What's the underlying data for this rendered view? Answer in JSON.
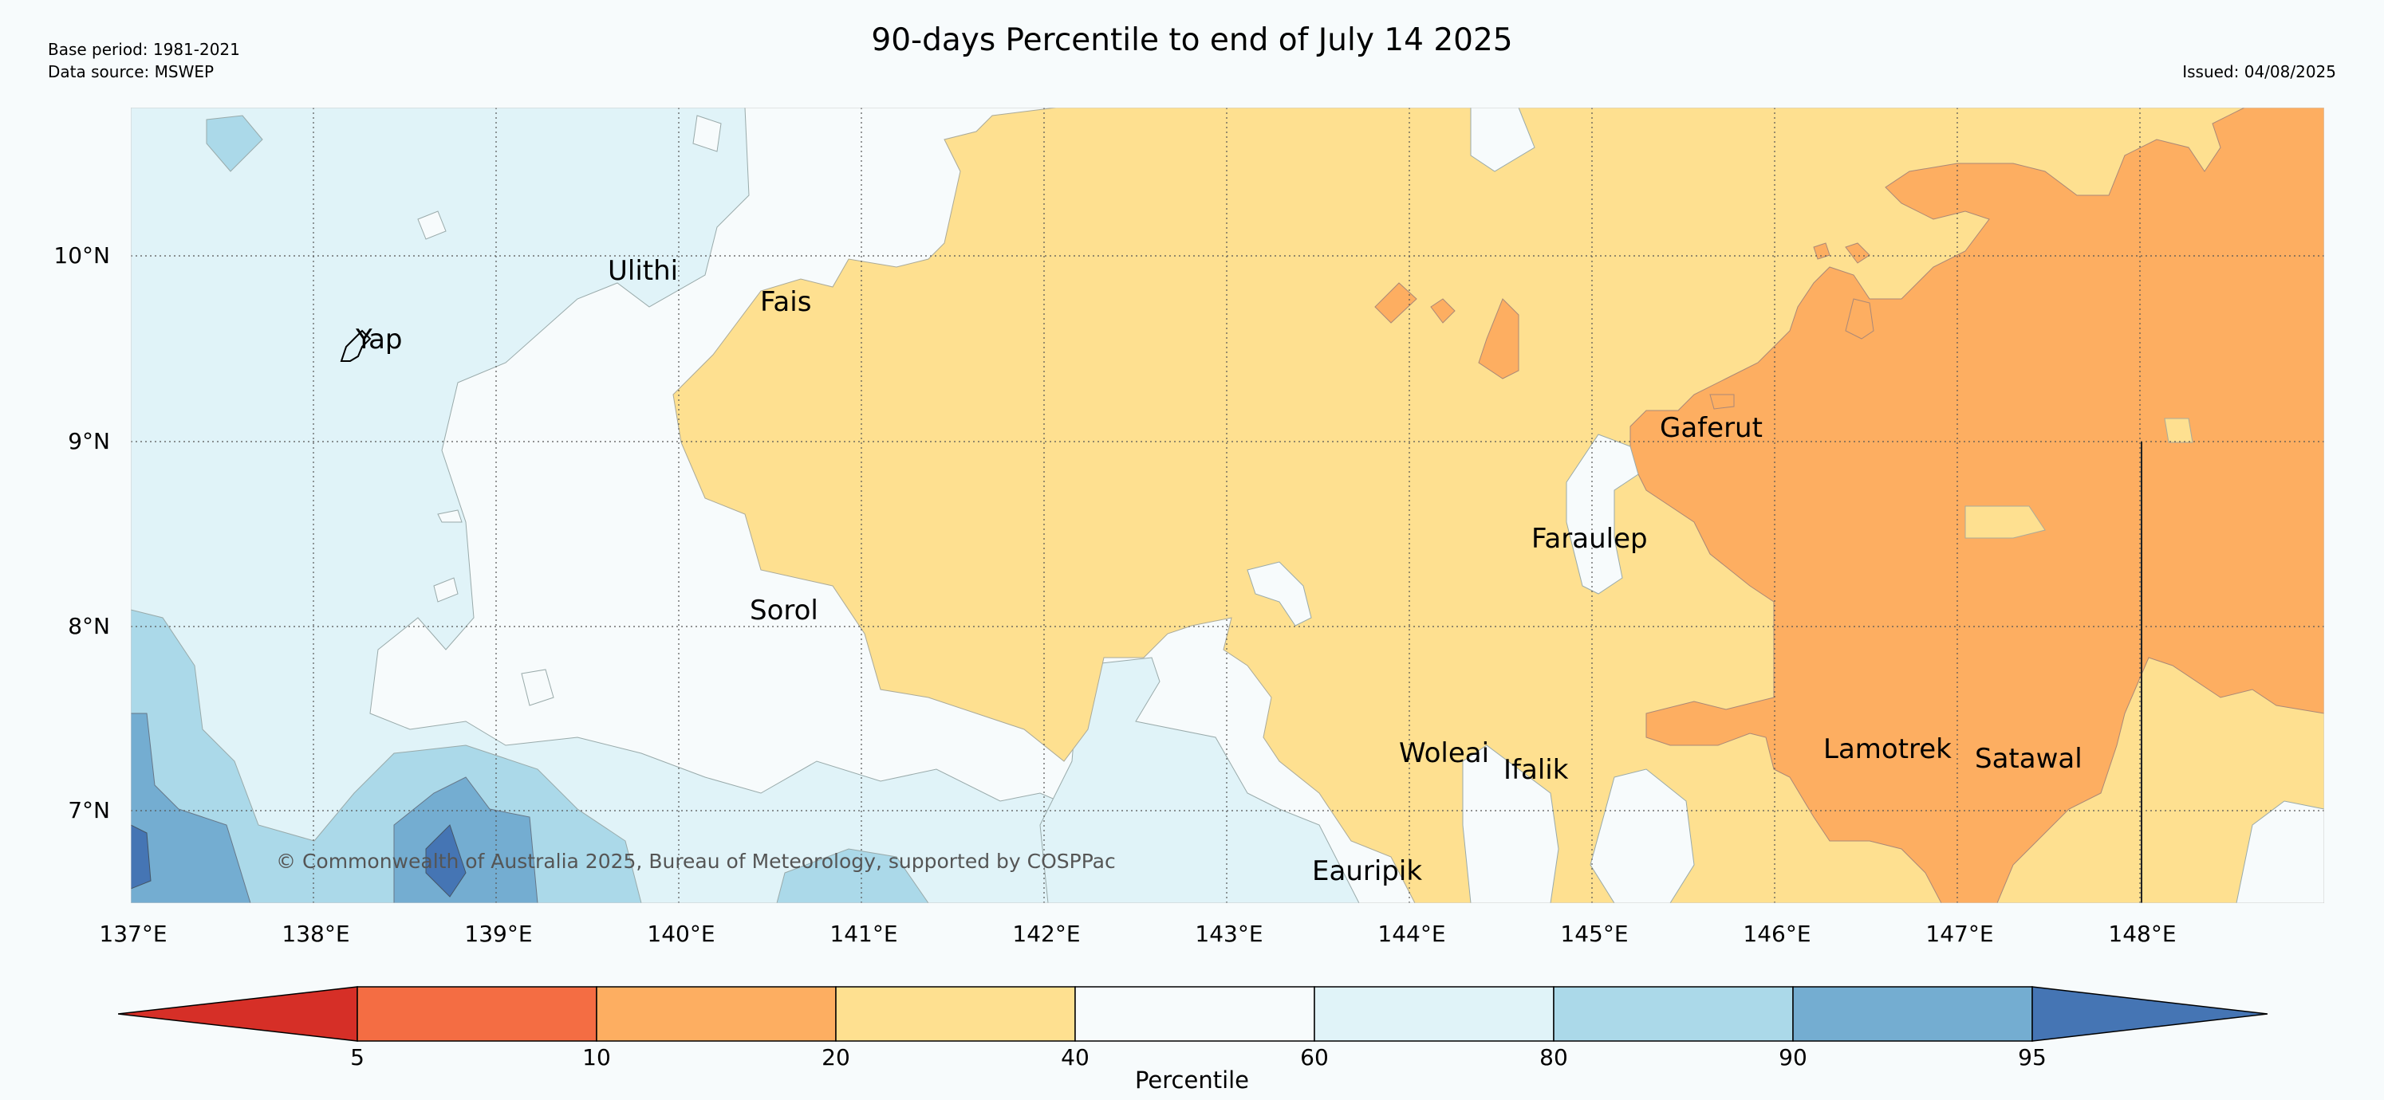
{
  "header": {
    "title": "90-days Percentile to end of July 14 2025",
    "base_period": "Base period: 1981-2021",
    "data_source": "Data source: MSWEP",
    "issued": "Issued: 04/08/2025"
  },
  "map": {
    "lon_ticks": [
      "137°E",
      "138°E",
      "139°E",
      "140°E",
      "141°E",
      "142°E",
      "143°E",
      "144°E",
      "145°E",
      "146°E",
      "147°E",
      "148°E"
    ],
    "lat_ticks": [
      "10°N",
      "9°N",
      "8°N",
      "7°N"
    ],
    "places": [
      {
        "name": "Yap",
        "lon": 138.2,
        "lat": 9.54
      },
      {
        "name": "Ulithi",
        "lon": 139.6,
        "lat": 9.92
      },
      {
        "name": "Fais",
        "lon": 140.5,
        "lat": 9.76
      },
      {
        "name": "Gaferut",
        "lon": 145.4,
        "lat": 9.07
      },
      {
        "name": "Faraulep",
        "lon": 144.7,
        "lat": 8.47
      },
      {
        "name": "Sorol",
        "lon": 140.4,
        "lat": 8.08
      },
      {
        "name": "Woleai",
        "lon": 143.9,
        "lat": 7.33
      },
      {
        "name": "Ifalik",
        "lon": 144.5,
        "lat": 7.24
      },
      {
        "name": "Lamotrek",
        "lon": 146.3,
        "lat": 7.34
      },
      {
        "name": "Satawal",
        "lon": 147.0,
        "lat": 7.29
      },
      {
        "name": "Eauripik",
        "lon": 143.5,
        "lat": 6.67
      }
    ],
    "copyright": "© Commonwealth of Australia 2025, Bureau of Meteorology, supported by COSPPac"
  },
  "colorbar": {
    "label": "Percentile",
    "ticks": [
      "5",
      "10",
      "20",
      "40",
      "60",
      "80",
      "90",
      "95"
    ],
    "colors": [
      "#d62f27",
      "#f46d43",
      "#fdae61",
      "#fee090",
      "#f7fbfc",
      "#e0f3f8",
      "#abd9e9",
      "#74add1",
      "#4575b4"
    ]
  }
}
